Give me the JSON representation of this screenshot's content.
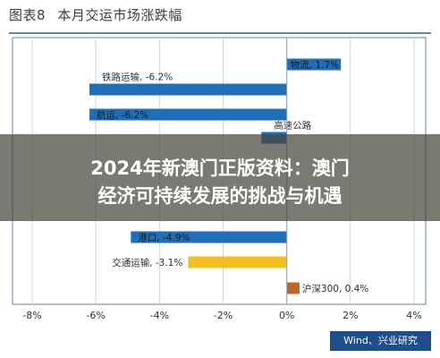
{
  "header": {
    "figure_no": "图表8",
    "title": "本月交运市场涨跌幅"
  },
  "overlay": {
    "line1": "2024年新澳门正版资料：澳门",
    "line2": "经济可持续发展的挑战与机遇"
  },
  "source": "Wind、兴业研究",
  "colors": {
    "bar": "#1f6fb8",
    "highlight": "#f2c01e",
    "small": "#b8672a",
    "axis": "#5b86b5"
  },
  "chart_data": {
    "type": "bar",
    "orientation": "horizontal",
    "xlim": [
      -8,
      4
    ],
    "xticks": [
      "-8%",
      "-6%",
      "-4%",
      "-2%",
      "0%",
      "2%",
      "4%"
    ],
    "xtick_values": [
      -8,
      -6,
      -4,
      -2,
      0,
      2,
      4
    ],
    "categories": [
      {
        "label": "物流, 1.7%",
        "value": 1.7,
        "color": "#1f6fb8",
        "label_side": "inside"
      },
      {
        "label": "铁路运输, -6.2%",
        "value": -6.2,
        "color": "#1f6fb8",
        "label_side": "above"
      },
      {
        "label": "航运, -6.2%",
        "value": -6.2,
        "color": "#1f6fb8",
        "label_side": "inside"
      },
      {
        "label": "高速公路",
        "value": -0.8,
        "color": "#1f6fb8",
        "label_side": "above"
      },
      {
        "label": "港口, -4.9%",
        "value": -4.9,
        "color": "#1f6fb8",
        "label_side": "inside"
      },
      {
        "label": "交通运输, -3.1%",
        "value": -3.1,
        "color": "#f2c01e",
        "label_side": "left"
      },
      {
        "label": "沪深300, 0.4%",
        "value": 0.4,
        "color": "#b8672a",
        "label_side": "right"
      }
    ]
  }
}
